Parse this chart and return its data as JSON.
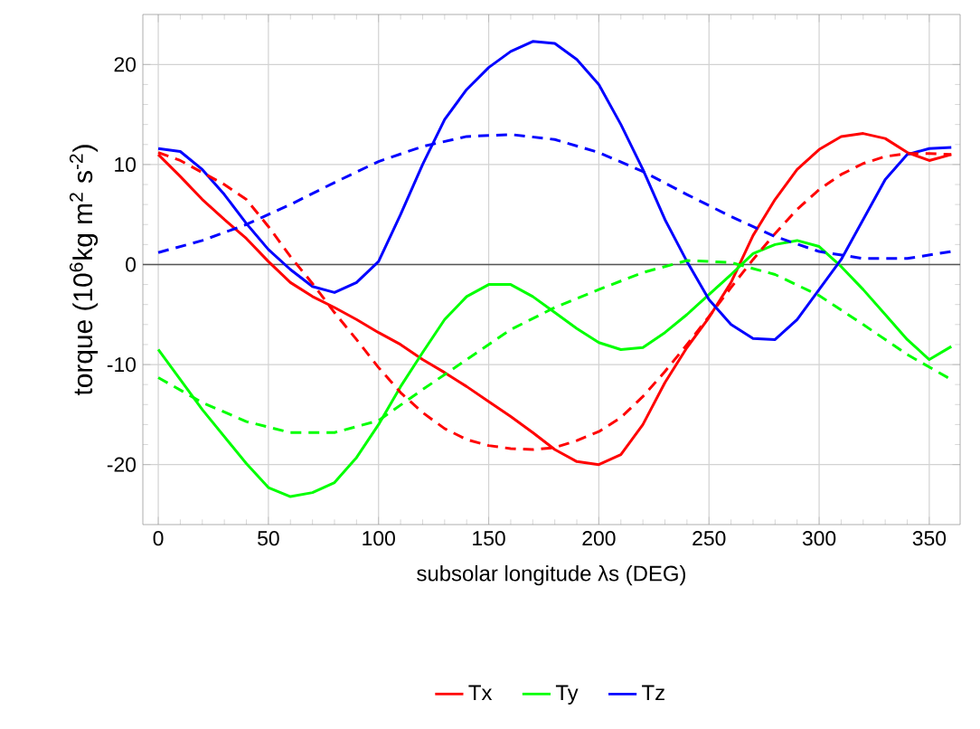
{
  "chart_data": {
    "type": "line",
    "xlabel": "subsolar longitude λs (DEG)",
    "ylabel": "torque (10$^{6}$kg m$^{2}$ s$^{-2}$)",
    "xlim": [
      -7,
      364
    ],
    "ylim": [
      -26,
      25
    ],
    "xticks": [
      0,
      50,
      100,
      150,
      200,
      250,
      300,
      350
    ],
    "yticks": [
      -20,
      -10,
      0,
      10,
      20
    ],
    "grid": true,
    "legend": "bottom",
    "marker": "none",
    "ref_lines": [
      {
        "axis": "y",
        "value": 0,
        "color": "#555555"
      }
    ],
    "series": [
      {
        "name": "Tx",
        "color": "#ff0000",
        "line_style": "solid",
        "x": [
          0,
          10,
          20,
          30,
          40,
          50,
          60,
          70,
          80,
          90,
          100,
          110,
          120,
          130,
          140,
          150,
          160,
          170,
          180,
          190,
          200,
          210,
          220,
          230,
          240,
          250,
          260,
          270,
          280,
          290,
          300,
          310,
          320,
          330,
          340,
          350,
          360
        ],
        "values": [
          11,
          8.8,
          6.5,
          4.5,
          2.6,
          0.3,
          -1.8,
          -3.2,
          -4.3,
          -5.5,
          -6.8,
          -8,
          -9.5,
          -10.8,
          -12.2,
          -13.7,
          -15.2,
          -16.8,
          -18.5,
          -19.7,
          -20,
          -19,
          -16,
          -11.8,
          -8.3,
          -5.3,
          -1.8,
          2.9,
          6.5,
          9.5,
          11.5,
          12.8,
          13.1,
          12.6,
          11.2,
          10.4,
          11
        ]
      },
      {
        "name": "Ty",
        "color": "#00ff00",
        "line_style": "solid",
        "x": [
          0,
          10,
          20,
          30,
          40,
          50,
          60,
          70,
          80,
          90,
          100,
          110,
          120,
          130,
          140,
          150,
          160,
          170,
          180,
          190,
          200,
          210,
          220,
          230,
          240,
          250,
          260,
          270,
          280,
          290,
          300,
          310,
          320,
          330,
          340,
          350,
          360
        ],
        "values": [
          -8.5,
          -11.5,
          -14.5,
          -17.2,
          -19.9,
          -22.3,
          -23.2,
          -22.8,
          -21.8,
          -19.3,
          -16,
          -12.2,
          -8.8,
          -5.5,
          -3.2,
          -2,
          -2,
          -3.2,
          -4.8,
          -6.4,
          -7.8,
          -8.5,
          -8.3,
          -6.8,
          -5,
          -3,
          -1,
          1.1,
          2,
          2.4,
          1.8,
          -0.2,
          -2.5,
          -5,
          -7.5,
          -9.5,
          -8.2
        ]
      },
      {
        "name": "Tz",
        "color": "#0000ff",
        "line_style": "solid",
        "x": [
          0,
          10,
          20,
          30,
          40,
          50,
          60,
          70,
          80,
          90,
          100,
          110,
          120,
          130,
          140,
          150,
          160,
          170,
          180,
          190,
          200,
          210,
          220,
          230,
          240,
          250,
          260,
          270,
          280,
          290,
          300,
          310,
          320,
          330,
          340,
          350,
          360
        ],
        "values": [
          11.6,
          11.3,
          9.5,
          7,
          4.1,
          1.5,
          -0.5,
          -2.2,
          -2.8,
          -1.8,
          0.3,
          5,
          10,
          14.5,
          17.5,
          19.7,
          21.3,
          22.3,
          22.1,
          20.5,
          18,
          14,
          9.5,
          4.5,
          0.3,
          -3.5,
          -6,
          -7.4,
          -7.5,
          -5.5,
          -2.5,
          0.5,
          4.5,
          8.5,
          11,
          11.6,
          11.7
        ]
      },
      {
        "color": "#ff0000",
        "line_style": "dashed",
        "x": [
          0,
          10,
          20,
          30,
          40,
          50,
          60,
          70,
          80,
          90,
          100,
          110,
          120,
          130,
          140,
          150,
          160,
          170,
          180,
          190,
          200,
          210,
          220,
          230,
          240,
          250,
          260,
          270,
          280,
          290,
          300,
          310,
          320,
          330,
          340,
          350,
          360
        ],
        "values": [
          11.2,
          10.4,
          9.2,
          8,
          6.5,
          3.8,
          0.8,
          -1.9,
          -4.8,
          -7.5,
          -10.3,
          -12.8,
          -14.8,
          -16.4,
          -17.5,
          -18.1,
          -18.4,
          -18.5,
          -18.3,
          -17.6,
          -16.7,
          -15.3,
          -13.2,
          -10.7,
          -8,
          -5.2,
          -2.3,
          0.5,
          3.1,
          5.5,
          7.5,
          9,
          10.1,
          10.8,
          11.1,
          11.1,
          11
        ]
      },
      {
        "color": "#00ff00",
        "line_style": "dashed",
        "x": [
          0,
          20,
          40,
          60,
          80,
          100,
          120,
          140,
          160,
          180,
          200,
          220,
          240,
          260,
          280,
          300,
          320,
          340,
          360
        ],
        "values": [
          -11.3,
          -13.8,
          -15.7,
          -16.8,
          -16.8,
          -15.6,
          -12.5,
          -9.5,
          -6.5,
          -4.3,
          -2.5,
          -0.8,
          0.4,
          0.2,
          -1,
          -3.1,
          -6,
          -9,
          -11.5
        ]
      },
      {
        "color": "#0000ff",
        "line_style": "dashed",
        "x": [
          0,
          20,
          40,
          60,
          80,
          100,
          120,
          140,
          160,
          180,
          200,
          220,
          240,
          260,
          280,
          300,
          320,
          340,
          360
        ],
        "values": [
          1.2,
          2.4,
          4,
          6,
          8.2,
          10.3,
          11.8,
          12.8,
          13,
          12.5,
          11.2,
          9.3,
          7,
          4.8,
          2.8,
          1.3,
          0.6,
          0.6,
          1.3
        ]
      }
    ]
  }
}
